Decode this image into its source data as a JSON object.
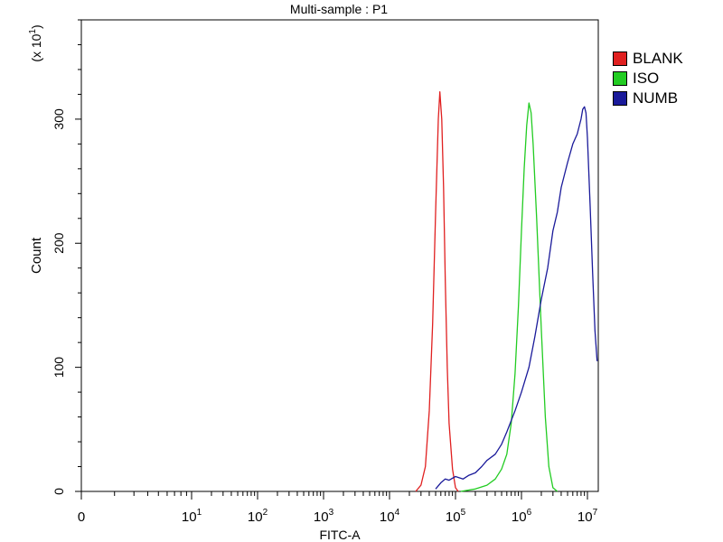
{
  "chart_data": {
    "type": "line",
    "title": "Multi-sample : P1",
    "xlabel": "FITC-A",
    "ylabel": "Count",
    "y_multiplier": "(x 10",
    "y_multiplier_exp": "1",
    "x_scale": "log",
    "xlim": [
      0,
      14000000
    ],
    "ylim": [
      0,
      380
    ],
    "y_ticks": [
      0,
      100,
      200,
      300
    ],
    "x_ticks": [
      {
        "value": 0,
        "base": "0",
        "exp": ""
      },
      {
        "value": 10,
        "base": "10",
        "exp": "1"
      },
      {
        "value": 100,
        "base": "10",
        "exp": "2"
      },
      {
        "value": 1000,
        "base": "10",
        "exp": "3"
      },
      {
        "value": 10000,
        "base": "10",
        "exp": "4"
      },
      {
        "value": 100000,
        "base": "10",
        "exp": "5"
      },
      {
        "value": 1000000,
        "base": "10",
        "exp": "6"
      },
      {
        "value": 10000000,
        "base": "10",
        "exp": "7"
      }
    ],
    "grid": false,
    "legend_position": "right",
    "series": [
      {
        "name": "BLANK",
        "color": "#e02020",
        "x": [
          25000,
          30000,
          35000,
          40000,
          45000,
          50000,
          55000,
          58000,
          62000,
          66000,
          70000,
          75000,
          80000,
          90000,
          100000,
          110000
        ],
        "y": [
          0,
          5,
          20,
          65,
          135,
          225,
          300,
          322,
          300,
          245,
          170,
          100,
          55,
          18,
          3,
          0
        ]
      },
      {
        "name": "ISO",
        "color": "#22cc22",
        "x": [
          120000,
          200000,
          300000,
          400000,
          500000,
          600000,
          700000,
          800000,
          900000,
          1000000,
          1100000,
          1200000,
          1300000,
          1400000,
          1500000,
          1700000,
          2000000,
          2300000,
          2600000,
          3000000,
          3500000
        ],
        "y": [
          0,
          2,
          5,
          10,
          18,
          30,
          55,
          95,
          150,
          210,
          260,
          295,
          313,
          305,
          280,
          220,
          130,
          60,
          20,
          3,
          0
        ]
      },
      {
        "name": "NUMB",
        "color": "#1a1a9a",
        "x": [
          50000,
          60000,
          70000,
          80000,
          100000,
          130000,
          160000,
          200000,
          250000,
          300000,
          400000,
          500000,
          600000,
          800000,
          1000000,
          1300000,
          1600000,
          2000000,
          2500000,
          3000000,
          3500000,
          4000000,
          5000000,
          6000000,
          7000000,
          8000000,
          8500000,
          9000000,
          9500000,
          10000000,
          11000000,
          12000000,
          13000000,
          14000000
        ],
        "y": [
          2,
          7,
          10,
          9,
          12,
          10,
          13,
          15,
          20,
          25,
          30,
          38,
          48,
          65,
          80,
          100,
          125,
          155,
          180,
          210,
          225,
          245,
          265,
          280,
          288,
          300,
          308,
          310,
          305,
          285,
          230,
          175,
          130,
          105
        ]
      }
    ]
  }
}
